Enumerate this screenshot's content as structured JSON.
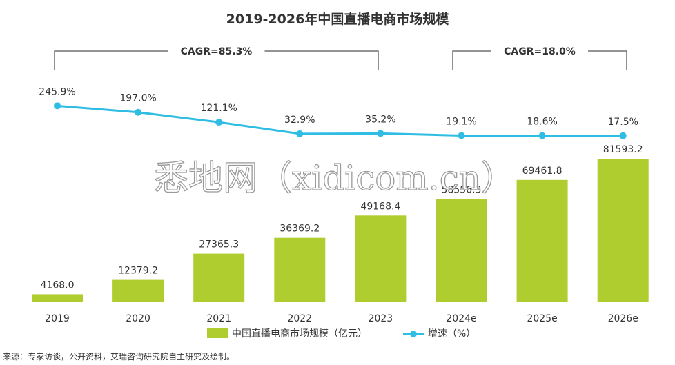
{
  "chart_data": {
    "type": "bar",
    "title": "2019-2026年中国直播电商市场规模",
    "categories": [
      "2019",
      "2020",
      "2021",
      "2022",
      "2023",
      "2024e",
      "2025e",
      "2026e"
    ],
    "series": [
      {
        "name": "中国直播电商市场规模（亿元）",
        "type": "bar",
        "values": [
          4168.0,
          12379.2,
          27365.3,
          36369.2,
          49168.4,
          58556.3,
          69461.8,
          81593.2
        ],
        "labels": [
          "4168.0",
          "12379.2",
          "27365.3",
          "36369.2",
          "49168.4",
          "58556.3",
          "69461.8",
          "81593.2"
        ]
      },
      {
        "name": "增速（%）",
        "type": "line",
        "values": [
          245.9,
          197.0,
          121.1,
          32.9,
          35.2,
          19.1,
          18.6,
          17.5
        ],
        "labels": [
          "245.9%",
          "197.0%",
          "121.1%",
          "32.9%",
          "35.2%",
          "19.1%",
          "18.6%",
          "17.5%"
        ]
      }
    ],
    "annotations": [
      {
        "text": "CAGR=85.3%",
        "from_category": "2019",
        "to_category": "2023"
      },
      {
        "text": "CAGR=18.0%",
        "from_category": "2024e",
        "to_category": "2026e"
      }
    ],
    "source": "来源：专家访谈，公开资料，艾瑞咨询研究院自主研究及绘制。",
    "watermark": "悉地网（xidicom.cn）",
    "colors": {
      "bar": "#b0cd2f",
      "line": "#2fbde3",
      "text": "#333333",
      "axis": "#bfbfbf",
      "bracket": "#555555"
    }
  }
}
